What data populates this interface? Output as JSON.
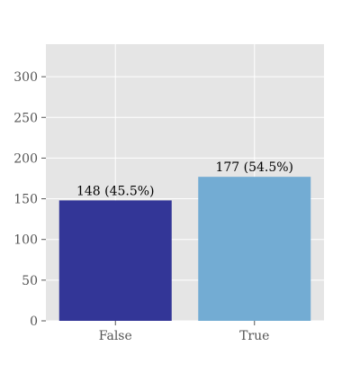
{
  "chart_data": {
    "type": "bar",
    "categories": [
      "False",
      "True"
    ],
    "values": [
      148,
      177
    ],
    "data_labels": [
      "148 (45.5%)",
      "177 (54.5%)"
    ],
    "colors": [
      "#333697",
      "#73acd3"
    ],
    "title": "",
    "xlabel": "",
    "ylabel": "",
    "ylim": [
      0,
      340
    ],
    "yticks": [
      0,
      50,
      100,
      150,
      200,
      250,
      300
    ],
    "grid": true,
    "legend": "none",
    "plot_background": "#e5e5e5",
    "grid_color": "#ffffff"
  }
}
